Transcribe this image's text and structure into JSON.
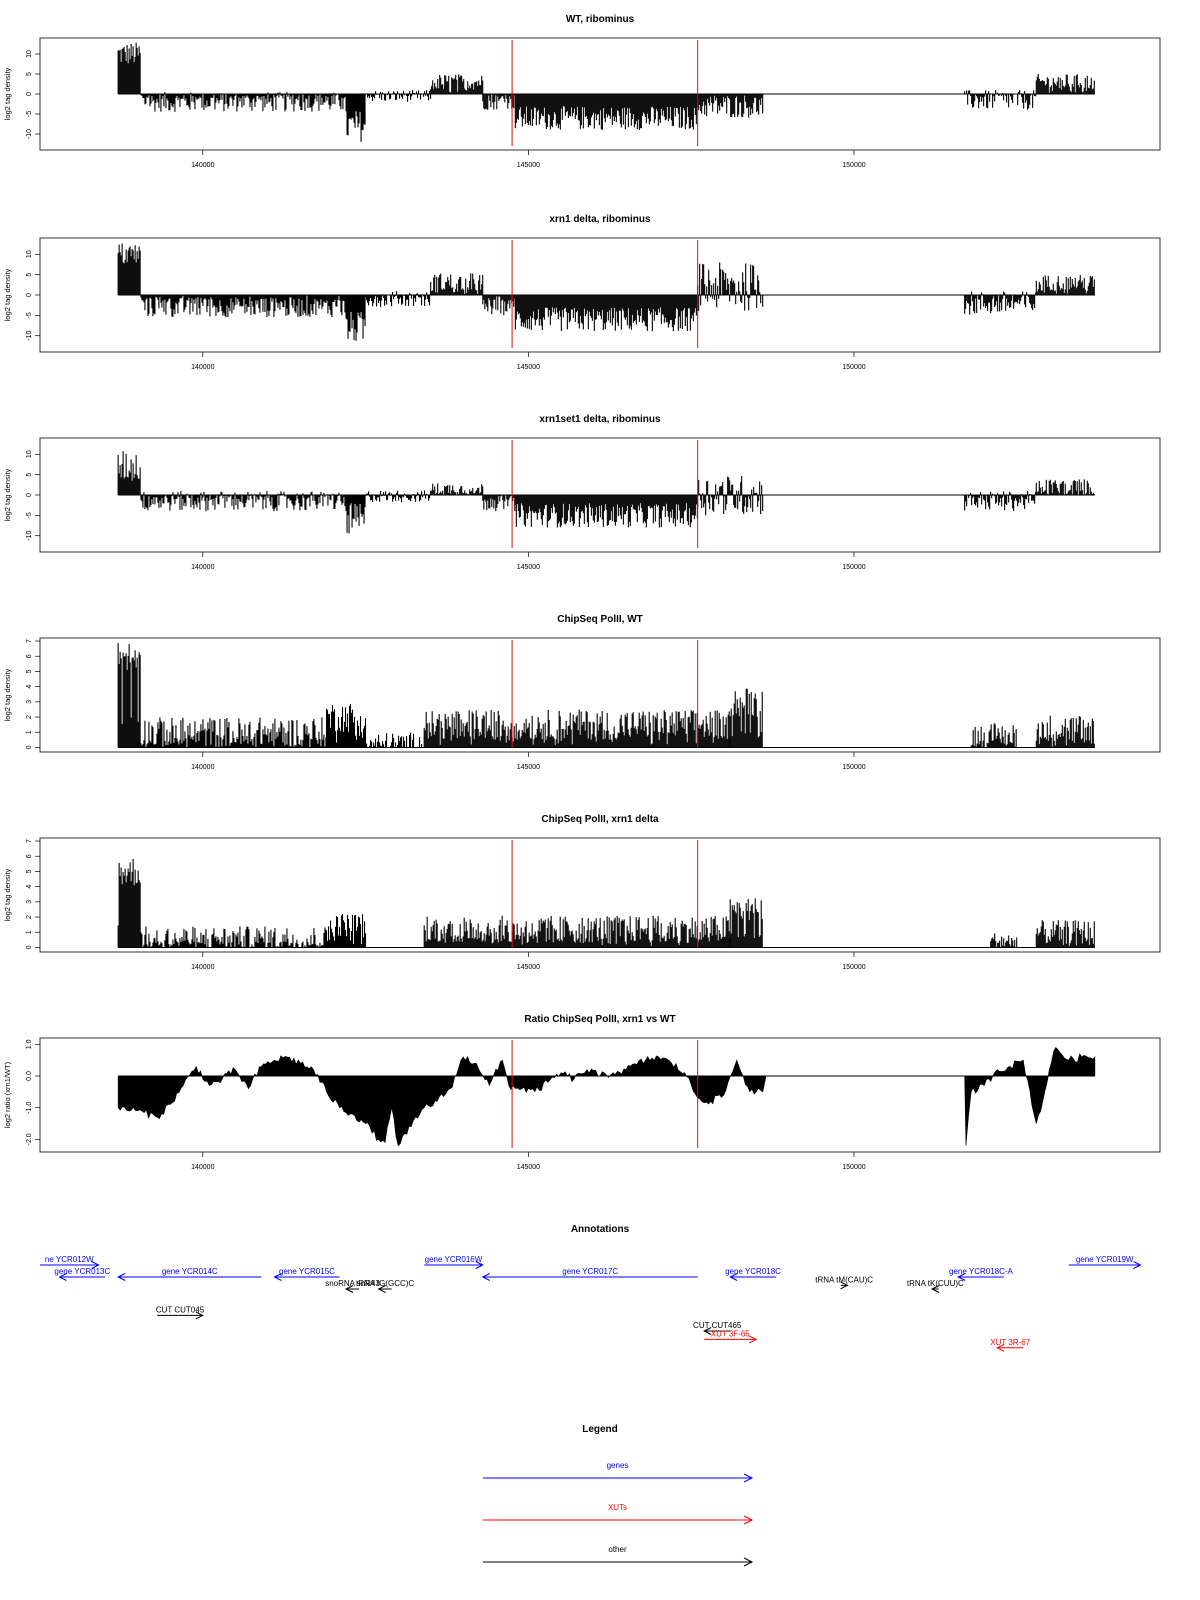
{
  "chart_data": [
    {
      "type": "bar",
      "title": "WT, ribominus",
      "ylabel": "log2 tag density",
      "ylim": [
        -14,
        14
      ],
      "y_ticks": [
        -10,
        -5,
        0,
        5,
        10
      ],
      "xlim": [
        137500,
        154700
      ],
      "x_ticks": [
        140000,
        145000,
        150000
      ],
      "markers": [
        144750,
        147600
      ],
      "marker_color": "#ff0000",
      "regions": [
        {
          "start": 138700,
          "end": 139050,
          "mean": 10,
          "amp": 3
        },
        {
          "start": 139050,
          "end": 142200,
          "mean": -2,
          "amp": 2.5
        },
        {
          "start": 142200,
          "end": 142500,
          "mean": -8,
          "amp": 4
        },
        {
          "start": 142500,
          "end": 143500,
          "mean": -0.5,
          "amp": 1.5
        },
        {
          "start": 143500,
          "end": 144300,
          "mean": 3,
          "amp": 2
        },
        {
          "start": 144300,
          "end": 144800,
          "mean": -2,
          "amp": 2
        },
        {
          "start": 144800,
          "end": 147600,
          "mean": -6,
          "amp": 3
        },
        {
          "start": 147600,
          "end": 148600,
          "mean": -3,
          "amp": 3
        },
        {
          "start": 148600,
          "end": 151700,
          "mean": 0,
          "amp": 0
        },
        {
          "start": 151700,
          "end": 152800,
          "mean": -1.5,
          "amp": 2.5
        },
        {
          "start": 152800,
          "end": 153700,
          "mean": 3,
          "amp": 2
        }
      ]
    },
    {
      "type": "bar",
      "title": "xrn1 delta, ribominus",
      "ylabel": "log2 tag density",
      "ylim": [
        -14,
        14
      ],
      "y_ticks": [
        -10,
        -5,
        0,
        5,
        10
      ],
      "xlim": [
        137500,
        154700
      ],
      "x_ticks": [
        140000,
        145000,
        150000
      ],
      "markers": [
        144750,
        147600
      ],
      "marker_color": "#ff0000",
      "regions": [
        {
          "start": 138700,
          "end": 139050,
          "mean": 10,
          "amp": 3
        },
        {
          "start": 139050,
          "end": 142200,
          "mean": -3,
          "amp": 2.5
        },
        {
          "start": 142200,
          "end": 142500,
          "mean": -8,
          "amp": 4
        },
        {
          "start": 142500,
          "end": 143500,
          "mean": -1,
          "amp": 2
        },
        {
          "start": 143500,
          "end": 144300,
          "mean": 3,
          "amp": 2.5
        },
        {
          "start": 144300,
          "end": 144800,
          "mean": -3,
          "amp": 2
        },
        {
          "start": 144800,
          "end": 147600,
          "mean": -6,
          "amp": 3
        },
        {
          "start": 147600,
          "end": 148600,
          "mean": 2,
          "amp": 6
        },
        {
          "start": 148600,
          "end": 151700,
          "mean": 0,
          "amp": 0
        },
        {
          "start": 151700,
          "end": 152800,
          "mean": -2,
          "amp": 3
        },
        {
          "start": 152800,
          "end": 153700,
          "mean": 3,
          "amp": 2
        }
      ]
    },
    {
      "type": "bar",
      "title": "xrn1set1 delta, ribominus",
      "ylabel": "log2 tag density",
      "ylim": [
        -14,
        14
      ],
      "y_ticks": [
        -10,
        -5,
        0,
        5,
        10
      ],
      "xlim": [
        137500,
        154700
      ],
      "x_ticks": [
        140000,
        145000,
        150000
      ],
      "markers": [
        144750,
        147600
      ],
      "marker_color": "#ff0000",
      "regions": [
        {
          "start": 138700,
          "end": 139050,
          "mean": 7,
          "amp": 4
        },
        {
          "start": 139050,
          "end": 142200,
          "mean": -1.5,
          "amp": 2.5
        },
        {
          "start": 142200,
          "end": 142500,
          "mean": -6,
          "amp": 4
        },
        {
          "start": 142500,
          "end": 143500,
          "mean": -0.3,
          "amp": 1.5
        },
        {
          "start": 143500,
          "end": 144300,
          "mean": 1.5,
          "amp": 1.5
        },
        {
          "start": 144300,
          "end": 144800,
          "mean": -2,
          "amp": 2
        },
        {
          "start": 144800,
          "end": 147600,
          "mean": -5,
          "amp": 3
        },
        {
          "start": 147600,
          "end": 148600,
          "mean": 0,
          "amp": 5
        },
        {
          "start": 148600,
          "end": 151700,
          "mean": 0,
          "amp": 0
        },
        {
          "start": 151700,
          "end": 152800,
          "mean": -1.5,
          "amp": 2.5
        },
        {
          "start": 152800,
          "end": 153700,
          "mean": 2,
          "amp": 2
        }
      ]
    },
    {
      "type": "bar",
      "title": "ChipSeq PolII, WT",
      "ylabel": "log2 tag density",
      "ylim": [
        -0.3,
        7.2
      ],
      "y_ticks": [
        0,
        1,
        2,
        3,
        4,
        5,
        6,
        7
      ],
      "xlim": [
        137500,
        154700
      ],
      "x_ticks": [
        140000,
        145000,
        150000
      ],
      "markers": [
        144750,
        147600
      ],
      "marker_color": "#ff0000",
      "regions": [
        {
          "start": 138700,
          "end": 139050,
          "mean": 6,
          "amp": 1
        },
        {
          "start": 139050,
          "end": 141900,
          "mean": 1,
          "amp": 1
        },
        {
          "start": 141900,
          "end": 142500,
          "mean": 2,
          "amp": 1
        },
        {
          "start": 142500,
          "end": 143400,
          "mean": 0.2,
          "amp": 0.8
        },
        {
          "start": 143400,
          "end": 148100,
          "mean": 1.5,
          "amp": 1
        },
        {
          "start": 148100,
          "end": 148600,
          "mean": 3,
          "amp": 1
        },
        {
          "start": 148600,
          "end": 151800,
          "mean": 0,
          "amp": 0
        },
        {
          "start": 151800,
          "end": 152500,
          "mean": 0.8,
          "amp": 0.8
        },
        {
          "start": 152500,
          "end": 152800,
          "mean": 0,
          "amp": 0
        },
        {
          "start": 152800,
          "end": 153700,
          "mean": 1.2,
          "amp": 1
        }
      ]
    },
    {
      "type": "bar",
      "title": "ChipSeq PolII, xrn1 delta",
      "ylabel": "log2 tag density",
      "ylim": [
        -0.3,
        7.2
      ],
      "y_ticks": [
        0,
        1,
        2,
        3,
        4,
        5,
        6,
        7
      ],
      "xlim": [
        137500,
        154700
      ],
      "x_ticks": [
        140000,
        145000,
        150000
      ],
      "markers": [
        144750,
        147600
      ],
      "marker_color": "#ff0000",
      "regions": [
        {
          "start": 138700,
          "end": 139050,
          "mean": 5,
          "amp": 1
        },
        {
          "start": 139050,
          "end": 141900,
          "mean": 0.6,
          "amp": 0.8
        },
        {
          "start": 141900,
          "end": 142500,
          "mean": 1.5,
          "amp": 0.8
        },
        {
          "start": 142500,
          "end": 143400,
          "mean": 0,
          "amp": 0
        },
        {
          "start": 143400,
          "end": 148100,
          "mean": 1.2,
          "amp": 0.9
        },
        {
          "start": 148100,
          "end": 148600,
          "mean": 2.5,
          "amp": 0.8
        },
        {
          "start": 148600,
          "end": 152100,
          "mean": 0,
          "amp": 0
        },
        {
          "start": 152100,
          "end": 152500,
          "mean": 0.4,
          "amp": 0.6
        },
        {
          "start": 152500,
          "end": 152800,
          "mean": 0,
          "amp": 0
        },
        {
          "start": 152800,
          "end": 153700,
          "mean": 1,
          "amp": 0.8
        }
      ]
    },
    {
      "type": "area",
      "title": "Ratio ChipSeq PolII, xrn1 vs WT",
      "ylabel": "log2 ratio (xrn1/WT)",
      "ylim": [
        -2.4,
        1.2
      ],
      "y_ticks": [
        -2,
        -1,
        0,
        1
      ],
      "y_tick_labels": [
        "-2.0",
        "-1.0",
        "0.0",
        "1.0"
      ],
      "xlim": [
        137500,
        154700
      ],
      "x_ticks": [
        140000,
        145000,
        150000
      ],
      "markers": [
        144750,
        147600
      ],
      "marker_color": "#ff0000",
      "points": [
        [
          138700,
          -1.0
        ],
        [
          139000,
          -1.1
        ],
        [
          139300,
          -1.3
        ],
        [
          139500,
          -0.9
        ],
        [
          139700,
          -0.3
        ],
        [
          139900,
          0.3
        ],
        [
          140100,
          -0.3
        ],
        [
          140300,
          -0.1
        ],
        [
          140500,
          0.2
        ],
        [
          140700,
          -0.4
        ],
        [
          140900,
          0.3
        ],
        [
          141100,
          0.5
        ],
        [
          141300,
          0.6
        ],
        [
          141500,
          0.4
        ],
        [
          141700,
          0.2
        ],
        [
          141900,
          -0.5
        ],
        [
          142100,
          -1.0
        ],
        [
          142300,
          -1.2
        ],
        [
          142500,
          -1.5
        ],
        [
          142700,
          -2.0
        ],
        [
          142800,
          -2.1
        ],
        [
          142900,
          -1.0
        ],
        [
          143000,
          -2.2
        ],
        [
          143200,
          -1.6
        ],
        [
          143400,
          -1.0
        ],
        [
          143600,
          -0.8
        ],
        [
          143800,
          -0.4
        ],
        [
          144000,
          0.6
        ],
        [
          144200,
          0.4
        ],
        [
          144400,
          -0.3
        ],
        [
          144600,
          0.5
        ],
        [
          144700,
          -0.3
        ],
        [
          144900,
          -0.4
        ],
        [
          145100,
          -0.5
        ],
        [
          145300,
          -0.2
        ],
        [
          145500,
          0.1
        ],
        [
          145700,
          -0.1
        ],
        [
          145900,
          0.2
        ],
        [
          146100,
          0.0
        ],
        [
          146300,
          0.1
        ],
        [
          146500,
          0.2
        ],
        [
          146800,
          0.5
        ],
        [
          147000,
          0.6
        ],
        [
          147200,
          0.4
        ],
        [
          147400,
          0.1
        ],
        [
          147600,
          -0.7
        ],
        [
          147800,
          -0.8
        ],
        [
          148000,
          -0.6
        ],
        [
          148200,
          0.5
        ],
        [
          148400,
          -0.5
        ],
        [
          148600,
          -0.5
        ],
        [
          148650,
          0.0
        ],
        [
          151700,
          0.0
        ],
        [
          151720,
          -2.2
        ],
        [
          151800,
          -0.5
        ],
        [
          152000,
          -0.3
        ],
        [
          152200,
          0.2
        ],
        [
          152400,
          0.3
        ],
        [
          152600,
          0.5
        ],
        [
          152800,
          -1.5
        ],
        [
          152900,
          -0.8
        ],
        [
          153000,
          0.2
        ],
        [
          153100,
          0.9
        ],
        [
          153300,
          0.5
        ],
        [
          153500,
          0.6
        ],
        [
          153700,
          0.6
        ]
      ]
    }
  ],
  "annotations": {
    "title": "Annotations",
    "xlim": [
      137500,
      154700
    ],
    "items": [
      {
        "label": "ne YCR012W",
        "start": 137500,
        "end": 138400,
        "row": 0,
        "color": "#0000ff",
        "dir": "+"
      },
      {
        "label": "gene YCR013C",
        "start": 137800,
        "end": 138500,
        "row": 1,
        "color": "#0000ff",
        "dir": "-"
      },
      {
        "label": "gene YCR014C",
        "start": 138700,
        "end": 140900,
        "row": 1,
        "color": "#0000ff",
        "dir": "-"
      },
      {
        "label": "gene YCR015C",
        "start": 141100,
        "end": 142100,
        "row": 1,
        "color": "#0000ff",
        "dir": "-"
      },
      {
        "label": "gene YCR016W",
        "start": 143400,
        "end": 144300,
        "row": 0,
        "color": "#0000ff",
        "dir": "+"
      },
      {
        "label": "gene YCR017C",
        "start": 144300,
        "end": 147600,
        "row": 1,
        "color": "#0000ff",
        "dir": "-"
      },
      {
        "label": "gene YCR018C",
        "start": 148100,
        "end": 148800,
        "row": 1,
        "color": "#0000ff",
        "dir": "-"
      },
      {
        "label": "gene YCR018C-A",
        "start": 151600,
        "end": 152300,
        "row": 1,
        "color": "#0000ff",
        "dir": "-"
      },
      {
        "label": "gene YCR019W",
        "start": 153300,
        "end": 154400,
        "row": 0,
        "color": "#0000ff",
        "dir": "+"
      },
      {
        "label": "snoRNA snR43",
        "start": 142200,
        "end": 142400,
        "row": 2,
        "color": "#000000",
        "dir": "-"
      },
      {
        "label": "tRNA tG(GCC)C",
        "start": 142700,
        "end": 142900,
        "row": 2,
        "color": "#000000",
        "dir": "-"
      },
      {
        "label": "tRNA tM(CAU)C",
        "start": 149800,
        "end": 149900,
        "row": 1.7,
        "color": "#000000",
        "dir": "+"
      },
      {
        "label": "tRNA tK(CUU)C",
        "start": 151200,
        "end": 151300,
        "row": 2,
        "color": "#000000",
        "dir": "-"
      },
      {
        "label": "CUT CUT045",
        "start": 139300,
        "end": 140000,
        "row": 4.2,
        "color": "#000000",
        "dir": "+"
      },
      {
        "label": "CUT CUT465",
        "start": 147700,
        "end": 148100,
        "row": 5.5,
        "color": "#000000",
        "dir": "-"
      },
      {
        "label": "XUT 3F-65",
        "start": 147700,
        "end": 148500,
        "row": 6.2,
        "color": "#ff0000",
        "dir": "+"
      },
      {
        "label": "XUT 3R-67",
        "start": 152200,
        "end": 152600,
        "row": 6.9,
        "color": "#ff0000",
        "dir": "-"
      }
    ]
  },
  "legend": {
    "title": "Legend",
    "items": [
      {
        "label": "genes",
        "color": "#0000ff"
      },
      {
        "label": "XUTs",
        "color": "#ff0000"
      },
      {
        "label": "other",
        "color": "#000000"
      }
    ]
  }
}
